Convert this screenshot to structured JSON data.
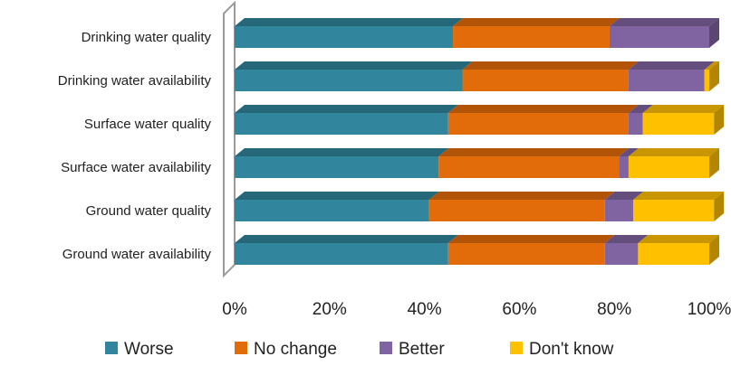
{
  "chart_data": {
    "type": "bar",
    "orientation": "horizontal",
    "stacked": "percent",
    "three_d": true,
    "categories": [
      "Drinking water quality",
      "Drinking water availability",
      "Surface water quality",
      "Surface water availability",
      "Ground water quality",
      "Ground water availability"
    ],
    "series": [
      {
        "name": "Worse",
        "color": "#31859c",
        "values": [
          46,
          48,
          45,
          43,
          41,
          45
        ]
      },
      {
        "name": "No change",
        "color": "#e36c0a",
        "values": [
          33,
          35,
          38,
          38,
          37,
          33
        ]
      },
      {
        "name": "Better",
        "color": "#8064a2",
        "values": [
          21,
          16,
          3,
          2,
          6,
          7
        ]
      },
      {
        "name": "Don't know",
        "color": "#ffc000",
        "values": [
          0,
          1,
          15,
          17,
          17,
          15
        ]
      }
    ],
    "x_ticks": [
      "0%",
      "20%",
      "40%",
      "60%",
      "80%",
      "100%"
    ],
    "xlim": [
      0,
      100
    ],
    "grid": false,
    "legend_position": "bottom",
    "title": "",
    "xlabel": "",
    "ylabel": ""
  }
}
